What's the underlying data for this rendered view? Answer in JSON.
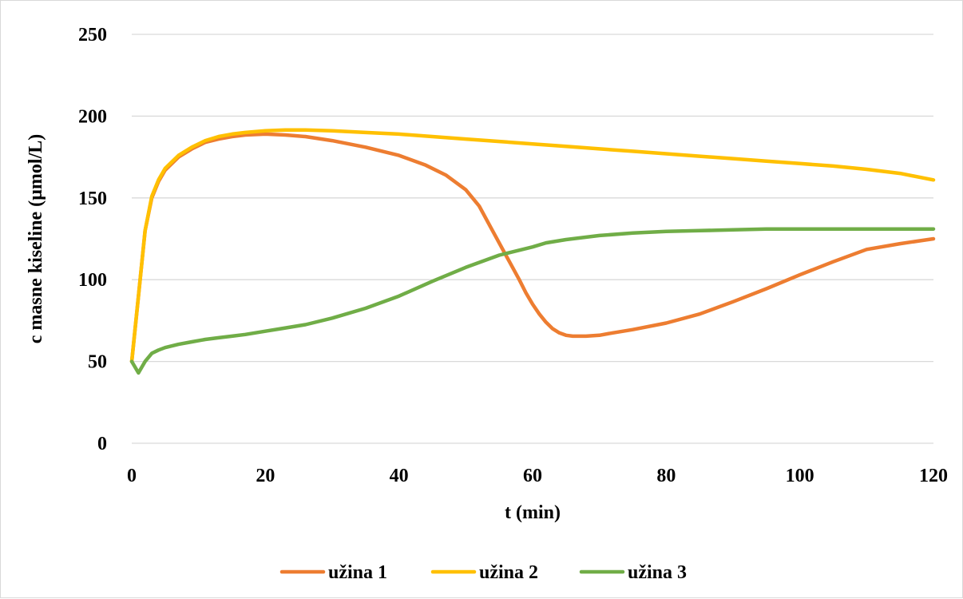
{
  "chart_data": {
    "type": "line",
    "title": "",
    "xlabel": "t (min)",
    "ylabel": "c masne kiseline (µmol/L)",
    "xlim": [
      0,
      120
    ],
    "ylim": [
      0,
      250
    ],
    "x_ticks": [
      0,
      20,
      40,
      60,
      80,
      100,
      120
    ],
    "y_ticks": [
      0,
      50,
      100,
      150,
      200,
      250
    ],
    "grid": "horizontal",
    "legend_position": "bottom",
    "series": [
      {
        "name": "užina 1",
        "color": "#ED7D31",
        "x": [
          0,
          1,
          2,
          3,
          4,
          5,
          7,
          9,
          11,
          13,
          15,
          17,
          20,
          23,
          26,
          30,
          35,
          40,
          44,
          47,
          50,
          52,
          54,
          56,
          58,
          59,
          60,
          61,
          62,
          63,
          64,
          65,
          66,
          67,
          68,
          70,
          72,
          75,
          80,
          85,
          90,
          95,
          100,
          105,
          110,
          115,
          120
        ],
        "y": [
          50,
          90,
          130,
          150,
          160,
          167,
          175,
          180,
          184,
          186,
          187.5,
          188.5,
          189,
          188.5,
          187.5,
          185,
          181,
          176,
          170,
          164,
          155,
          145,
          130,
          115,
          100,
          92,
          85,
          79,
          74,
          70,
          67.5,
          66,
          65.5,
          65.5,
          65.5,
          66,
          67.5,
          69.5,
          73.5,
          79,
          86.5,
          94.5,
          103,
          111,
          118.5,
          122,
          125
        ]
      },
      {
        "name": "užina 2",
        "color": "#FFC000",
        "x": [
          0,
          1,
          2,
          3,
          4,
          5,
          7,
          9,
          11,
          13,
          15,
          17,
          20,
          23,
          26,
          30,
          35,
          40,
          45,
          50,
          55,
          60,
          65,
          70,
          75,
          80,
          85,
          90,
          95,
          100,
          105,
          110,
          115,
          120
        ],
        "y": [
          50,
          90,
          130,
          151,
          161,
          168,
          176,
          181,
          185,
          187.5,
          189,
          190,
          191,
          191.5,
          191.5,
          191,
          190,
          189,
          187.5,
          186,
          184.5,
          183,
          181.5,
          180,
          178.5,
          177,
          175.5,
          174,
          172.5,
          171,
          169.5,
          167.5,
          165,
          161
        ]
      },
      {
        "name": "užina 3",
        "color": "#70AD47",
        "x": [
          0,
          1,
          2,
          3,
          4,
          5,
          7,
          9,
          11,
          13,
          15,
          17,
          20,
          23,
          26,
          30,
          35,
          40,
          45,
          50,
          55,
          60,
          62,
          65,
          70,
          75,
          80,
          85,
          90,
          95,
          100,
          105,
          110,
          115,
          120
        ],
        "y": [
          50,
          43,
          50,
          55,
          57,
          58.5,
          60.5,
          62,
          63.5,
          64.5,
          65.5,
          66.5,
          68.5,
          70.5,
          72.5,
          76.5,
          82.5,
          90,
          99,
          107.5,
          115,
          120,
          122.5,
          124.5,
          127,
          128.5,
          129.5,
          130,
          130.5,
          131,
          131,
          131,
          131,
          131,
          131
        ]
      }
    ]
  }
}
